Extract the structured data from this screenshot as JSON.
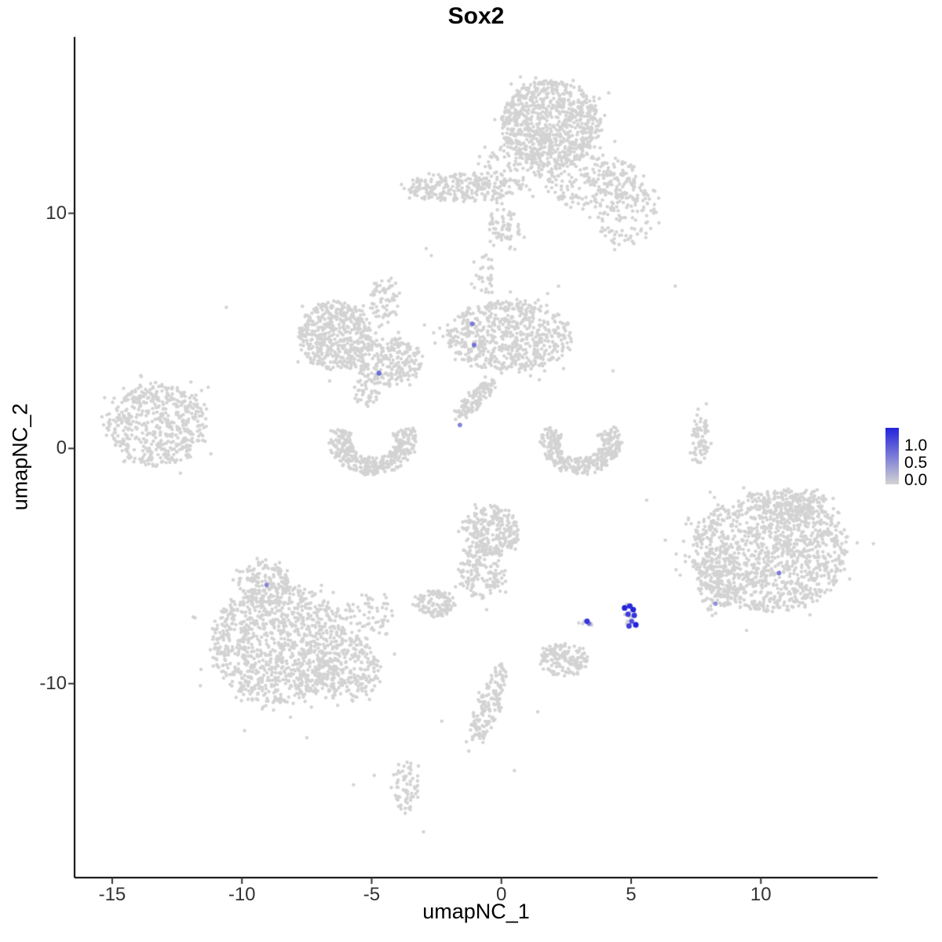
{
  "title": "Sox2",
  "axes": {
    "x": {
      "label": "umapNC_1",
      "ticks": [
        -15,
        -10,
        -5,
        0,
        5,
        10
      ],
      "range": [
        -16.45,
        14.5
      ]
    },
    "y": {
      "label": "umapNC_2",
      "ticks": [
        -10,
        0,
        10
      ],
      "range": [
        -18.25,
        17.5
      ]
    }
  },
  "legend": {
    "labels": [
      "1.0",
      "0.5",
      "0.0"
    ],
    "low_color": "#D3D3D3",
    "high_color": "#2323DC"
  },
  "chart_data": {
    "type": "scatter",
    "title": "Sox2",
    "xlabel": "umapNC_1",
    "ylabel": "umapNC_2",
    "xlim": [
      -16.45,
      14.5
    ],
    "ylim": [
      -18.25,
      17.5
    ],
    "grid": false,
    "legend_position": "right",
    "point_color_low": "#D3D3D3",
    "point_color_high": "#2323DC",
    "clusters": [
      {
        "name": "top-main",
        "type": "blob",
        "cx": 1.9,
        "cy": 13.8,
        "rx": 1.9,
        "ry": 1.85,
        "n": 850
      },
      {
        "name": "top-right-ext",
        "type": "blob",
        "cx": 3.4,
        "cy": 11.4,
        "rx": 1.8,
        "ry": 1.2,
        "n": 200
      },
      {
        "name": "top-right-lower",
        "type": "blob",
        "cx": 4.8,
        "cy": 10.3,
        "rx": 1.2,
        "ry": 1.7,
        "n": 160
      },
      {
        "name": "top-band",
        "type": "blob",
        "cx": -1.5,
        "cy": 11.1,
        "rx": 2.3,
        "ry": 0.62,
        "n": 280
      },
      {
        "name": "top-band-ext",
        "type": "blob",
        "cx": 0.4,
        "cy": 12.1,
        "rx": 1.3,
        "ry": 0.8,
        "n": 70
      },
      {
        "name": "top-neck",
        "type": "blob",
        "cx": 0.1,
        "cy": 9.4,
        "rx": 0.65,
        "ry": 1.0,
        "n": 70
      },
      {
        "name": "midleft-core",
        "type": "blob",
        "cx": -6.4,
        "cy": 4.8,
        "rx": 1.4,
        "ry": 1.45,
        "n": 480
      },
      {
        "name": "midleft-arm",
        "type": "blob",
        "cx": -4.4,
        "cy": 3.7,
        "rx": 1.3,
        "ry": 1.0,
        "n": 250
      },
      {
        "name": "midleft-upper",
        "type": "blob",
        "cx": -4.5,
        "cy": 6.4,
        "rx": 0.6,
        "ry": 0.9,
        "n": 70
      },
      {
        "name": "midleft-lower-join",
        "type": "blob",
        "cx": -5.2,
        "cy": 2.4,
        "rx": 0.5,
        "ry": 0.7,
        "n": 45
      },
      {
        "name": "center-core",
        "type": "blob",
        "cx": 0.3,
        "cy": 4.8,
        "rx": 2.4,
        "ry": 1.5,
        "n": 650
      },
      {
        "name": "center-stream",
        "type": "blob",
        "cx": -1.0,
        "cy": 2.1,
        "rx": 1.15,
        "ry": 0.35,
        "n": 120,
        "rot": 0.8
      },
      {
        "name": "center-bridge-up",
        "type": "blob",
        "cx": -0.7,
        "cy": 7.4,
        "rx": 0.5,
        "ry": 1.0,
        "n": 30
      },
      {
        "name": "far-left",
        "type": "blob",
        "cx": -13.3,
        "cy": 1.0,
        "rx": 1.95,
        "ry": 1.75,
        "n": 520
      },
      {
        "name": "cup-left",
        "type": "crescent",
        "cx": -4.95,
        "cy": 0.3,
        "rx": 1.7,
        "ry": 1.45,
        "a1": 155,
        "a2": 385,
        "thick": 0.5,
        "n": 380
      },
      {
        "name": "cup-right",
        "type": "crescent",
        "cx": 3.05,
        "cy": 0.25,
        "rx": 1.55,
        "ry": 1.35,
        "a1": 150,
        "a2": 390,
        "thick": 0.5,
        "n": 330
      },
      {
        "name": "strip",
        "type": "blob",
        "cx": 7.65,
        "cy": 0.35,
        "rx": 0.32,
        "ry": 1.1,
        "n": 70
      },
      {
        "name": "right-main",
        "type": "blob",
        "cx": 10.3,
        "cy": -4.4,
        "rx": 3.0,
        "ry": 2.55,
        "n": 1250
      },
      {
        "name": "right-top",
        "type": "blob",
        "cx": 11.3,
        "cy": -2.4,
        "rx": 1.3,
        "ry": 0.7,
        "n": 140
      },
      {
        "name": "right-left-arm",
        "type": "blob",
        "cx": 8.3,
        "cy": -5.6,
        "rx": 0.75,
        "ry": 1.4,
        "n": 140
      },
      {
        "name": "center-vertical-top",
        "type": "blob",
        "cx": -0.4,
        "cy": -3.5,
        "rx": 1.1,
        "ry": 1.05,
        "n": 240
      },
      {
        "name": "center-vertical-bottom",
        "type": "blob",
        "cx": -0.7,
        "cy": -5.2,
        "rx": 0.9,
        "ry": 1.25,
        "n": 170
      },
      {
        "name": "bottom-left-core",
        "type": "blob",
        "cx": -8.6,
        "cy": -8.3,
        "rx": 2.6,
        "ry": 2.55,
        "n": 1100
      },
      {
        "name": "bottom-left-top",
        "type": "blob",
        "cx": -9.2,
        "cy": -5.7,
        "rx": 1.0,
        "ry": 0.9,
        "n": 140
      },
      {
        "name": "bottom-left-arm",
        "type": "blob",
        "cx": -5.9,
        "cy": -9.4,
        "rx": 1.4,
        "ry": 1.3,
        "n": 240
      },
      {
        "name": "bottom-left-sparse",
        "type": "blob",
        "cx": -5.2,
        "cy": -7.3,
        "rx": 1.1,
        "ry": 1.1,
        "n": 80
      },
      {
        "name": "small-center",
        "type": "blob",
        "cx": -2.5,
        "cy": -6.6,
        "rx": 0.75,
        "ry": 0.55,
        "n": 120
      },
      {
        "name": "small-low",
        "type": "blob",
        "cx": 2.4,
        "cy": -9.0,
        "rx": 0.9,
        "ry": 0.68,
        "n": 150
      },
      {
        "name": "low-stream",
        "type": "blob",
        "cx": -0.5,
        "cy": -10.9,
        "rx": 0.42,
        "ry": 1.85,
        "n": 160,
        "rot": -0.3
      },
      {
        "name": "bottom-stream",
        "type": "blob",
        "cx": -3.7,
        "cy": -14.4,
        "rx": 0.5,
        "ry": 1.15,
        "n": 70
      },
      {
        "name": "blue-neighbor-a",
        "type": "blob",
        "cx": 4.95,
        "cy": -7.1,
        "rx": 0.4,
        "ry": 0.4,
        "n": 12
      },
      {
        "name": "blue-neighbor-b",
        "type": "blob",
        "cx": 3.3,
        "cy": -7.4,
        "rx": 0.28,
        "ry": 0.24,
        "n": 7
      }
    ],
    "singles": [
      [
        6.7,
        6.9
      ],
      [
        -10.6,
        6.0
      ],
      [
        -2.9,
        8.5
      ],
      [
        -2.7,
        8.2
      ],
      [
        -13.9,
        3.1
      ],
      [
        7.9,
        1.9
      ],
      [
        -7.5,
        -12.3
      ],
      [
        -2.3,
        -11.6
      ],
      [
        1.4,
        -11.2
      ],
      [
        0.5,
        -13.7
      ],
      [
        -4.9,
        -13.9
      ],
      [
        -5.7,
        -14.3
      ],
      [
        -3.0,
        -16.3
      ],
      [
        -9.9,
        -12.0
      ],
      [
        4.3,
        3.3
      ],
      [
        5.6,
        -2.2
      ],
      [
        -11.3,
        2.6
      ],
      [
        2.2,
        6.9
      ]
    ],
    "expressing_points": [
      {
        "x": -1.12,
        "y": 5.3,
        "v": 0.5
      },
      {
        "x": -1.05,
        "y": 4.4,
        "v": 0.55
      },
      {
        "x": -4.72,
        "y": 3.2,
        "v": 0.6
      },
      {
        "x": -1.6,
        "y": 1.0,
        "v": 0.45
      },
      {
        "x": -9.05,
        "y": -5.8,
        "v": 0.45
      },
      {
        "x": 10.7,
        "y": -5.3,
        "v": 0.5
      },
      {
        "x": 8.25,
        "y": -6.6,
        "v": 0.4
      },
      {
        "x": 3.3,
        "y": -7.35,
        "v": 0.9
      },
      {
        "x": 3.38,
        "y": -7.45,
        "v": 0.5
      },
      {
        "x": 4.75,
        "y": -6.78,
        "v": 1.0
      },
      {
        "x": 4.95,
        "y": -6.7,
        "v": 0.95
      },
      {
        "x": 5.08,
        "y": -6.85,
        "v": 1.0
      },
      {
        "x": 4.88,
        "y": -7.05,
        "v": 0.85
      },
      {
        "x": 5.12,
        "y": -7.1,
        "v": 0.9
      },
      {
        "x": 5.02,
        "y": -7.35,
        "v": 0.75
      },
      {
        "x": 5.18,
        "y": -7.5,
        "v": 1.0
      },
      {
        "x": 4.92,
        "y": -7.55,
        "v": 0.85
      }
    ]
  }
}
